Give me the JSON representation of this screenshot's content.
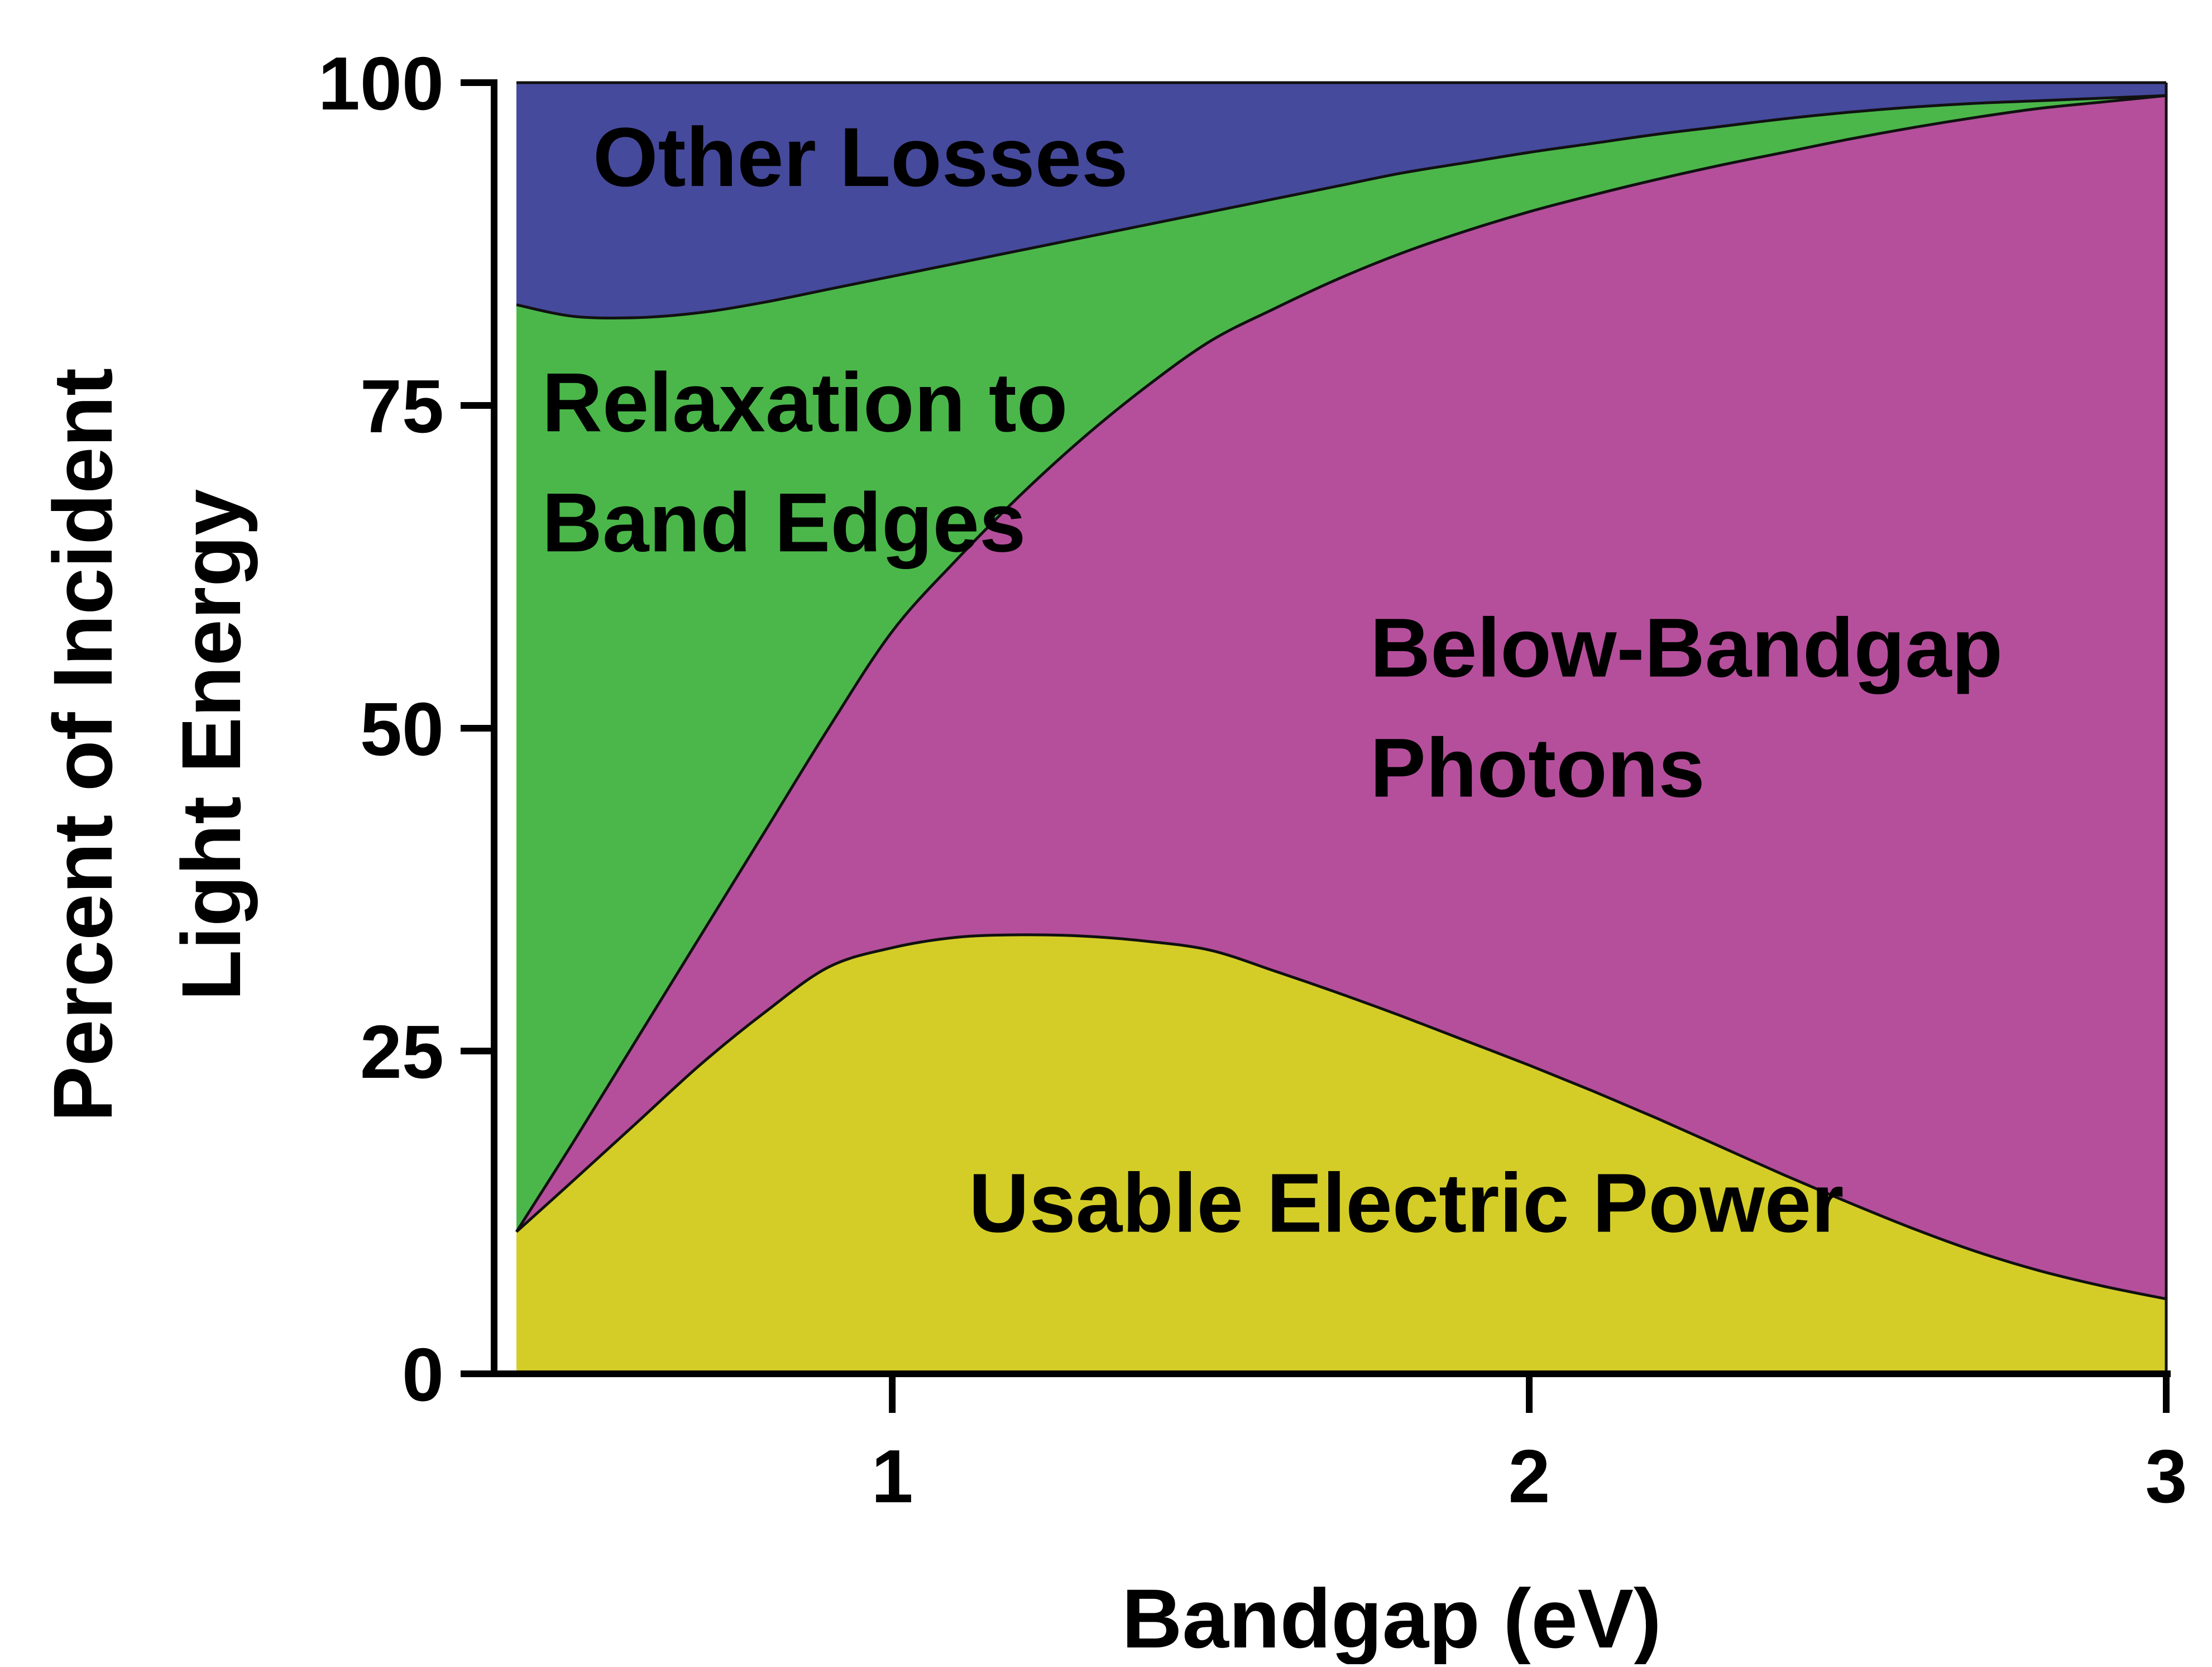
{
  "chart_data": {
    "type": "area",
    "stacked": true,
    "xlabel": "Bandgap (eV)",
    "ylabel_lines": [
      "Percent of Incident",
      "Light Energy"
    ],
    "xlim": [
      0.41,
      3.0
    ],
    "ylim": [
      0,
      100
    ],
    "xticks": [
      1,
      2,
      3
    ],
    "yticks": [
      0,
      25,
      50,
      75,
      100
    ],
    "grid": false,
    "legend": "none",
    "x": [
      0.41,
      0.5,
      0.6,
      0.7,
      0.8,
      0.9,
      1.0,
      1.1,
      1.2,
      1.3,
      1.4,
      1.5,
      1.6,
      1.7,
      1.8,
      1.9,
      2.0,
      2.1,
      2.2,
      2.3,
      2.4,
      2.5,
      2.6,
      2.7,
      2.8,
      2.9,
      3.0
    ],
    "boundaries": {
      "usable_top": [
        11,
        15,
        19.5,
        24,
        28,
        31.5,
        33,
        33.8,
        34,
        33.9,
        33.5,
        32.8,
        31.2,
        29.5,
        27.7,
        25.8,
        23.9,
        21.9,
        19.8,
        17.6,
        15.4,
        13.3,
        11.3,
        9.5,
        8,
        6.8,
        5.8
      ],
      "below_top": [
        11,
        18,
        26,
        34,
        42,
        50,
        57.5,
        63,
        68,
        72.5,
        76.5,
        80,
        82.5,
        84.8,
        86.8,
        88.5,
        90,
        91.3,
        92.5,
        93.6,
        94.6,
        95.6,
        96.5,
        97.3,
        98,
        98.5,
        99
      ],
      "relaxation_top": [
        82.8,
        81.9,
        81.8,
        82.2,
        83,
        84,
        85,
        86,
        87,
        88,
        89,
        90,
        91,
        92,
        93,
        93.8,
        94.6,
        95.3,
        96,
        96.6,
        97.2,
        97.7,
        98.1,
        98.4,
        98.6,
        98.8,
        99
      ],
      "other_top": [
        100,
        100,
        100,
        100,
        100,
        100,
        100,
        100,
        100,
        100,
        100,
        100,
        100,
        100,
        100,
        100,
        100,
        100,
        100,
        100,
        100,
        100,
        100,
        100,
        100,
        100,
        100
      ]
    },
    "regions": [
      {
        "name": "Usable Electric Power",
        "color": "#d4cd27",
        "lines": [
          "Usable Electric Power"
        ],
        "label_anchor": [
          1.12,
          11
        ]
      },
      {
        "name": "Below-Bandgap Photons",
        "color": "#b54f9b",
        "lines": [
          "Below-Bandgap Photons"
        ],
        "label_anchor": [
          1.75,
          54
        ],
        "wrap": [
          "Below-Bandgap",
          "Photons"
        ]
      },
      {
        "name": "Relaxation to Band Edges",
        "color": "#4bb74a",
        "lines": [
          "Relaxation to",
          "Band Edges"
        ],
        "label_anchor": [
          0.45,
          73
        ]
      },
      {
        "name": "Other Losses",
        "color": "#464a9c",
        "lines": [
          "Other Losses"
        ],
        "label_anchor": [
          0.53,
          92
        ]
      }
    ]
  }
}
